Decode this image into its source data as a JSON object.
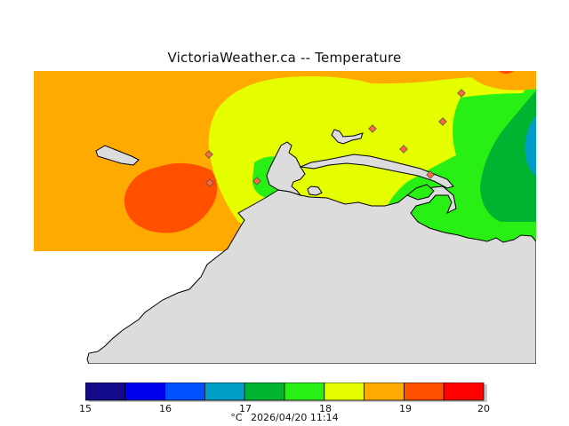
{
  "title": "VictoriaWeather.ca -- Temperature",
  "legend": {
    "bins": [
      {
        "from": 15.0,
        "to": 15.5,
        "color": "#140a8c"
      },
      {
        "from": 15.5,
        "to": 16.0,
        "color": "#0000f0"
      },
      {
        "from": 16.0,
        "to": 16.5,
        "color": "#0050ff"
      },
      {
        "from": 16.5,
        "to": 17.0,
        "color": "#009ec8"
      },
      {
        "from": 17.0,
        "to": 17.5,
        "color": "#00b432"
      },
      {
        "from": 17.5,
        "to": 18.0,
        "color": "#28f014"
      },
      {
        "from": 18.0,
        "to": 18.5,
        "color": "#e6ff00"
      },
      {
        "from": 18.5,
        "to": 19.0,
        "color": "#ffaa00"
      },
      {
        "from": 19.0,
        "to": 19.5,
        "color": "#ff5000"
      },
      {
        "from": 19.5,
        "to": 20.0,
        "color": "#ff0000"
      }
    ],
    "ticks": [
      "15",
      "16",
      "17",
      "18",
      "19",
      "20"
    ],
    "unit": "°C",
    "timestamp": "2026/04/20 11:14"
  },
  "colors": {
    "land": "#dcdcdc",
    "coast": "#000000",
    "station_marker": "#ff6a3c"
  }
}
